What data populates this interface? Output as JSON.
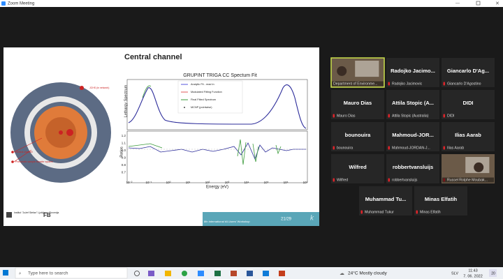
{
  "window": {
    "title": "Zoom Meeting"
  },
  "slide": {
    "title": "Central channel",
    "diagram_labels": [
      "JCHS (in network)",
      "Central channel",
      "Pneumatic sample transfer system"
    ],
    "chart": {
      "title": "GRUPINT TRIGA CC Spectum Fit",
      "legend": [
        "Analytic Fit - read in",
        "Modulated Fitting Function",
        "Final Fitted Spectrum",
        "MCNP (pointwise)"
      ],
      "y_label": "Lethargy Spectrum",
      "ratio_label": "Ratios",
      "x_label": "Energy (eV)",
      "ratio_ticks": [
        "1.2",
        "1.1",
        "1.0",
        "0.9",
        "0.8",
        "0.7"
      ],
      "x_ticks": [
        "10⁻²",
        "10⁻¹",
        "10⁰",
        "10¹",
        "10²",
        "10³",
        "10⁴",
        "10⁵",
        "10⁶",
        "10⁷"
      ]
    },
    "footer": {
      "workshop": "8th International k0-Users' Workshop",
      "page": "21/29",
      "institute": "Institut \"Jožef Stefan\" Ljubljana, Slovenija"
    }
  },
  "participants": [
    {
      "label": "Department of Environme...",
      "video": true,
      "active": true
    },
    {
      "name": "Radojko Jacimo...",
      "label": "Radojko Jacimovic"
    },
    {
      "name": "Giancarlo D'Ag...",
      "label": "Giancarlo D'Agostino"
    },
    {
      "name": "Mauro Dias",
      "label": "Mauro Dias"
    },
    {
      "name": "Attila Stopic (A...",
      "label": "Attila Stopic (Australia)"
    },
    {
      "name": "DIDI",
      "label": "DIDI"
    },
    {
      "name": "bounouira",
      "label": "bounouira"
    },
    {
      "name": "Mahmoud-JOR...",
      "label": "Mahmoud-JORDAN-J..."
    },
    {
      "name": "Ilias Aarab",
      "label": "Ilias Aarab"
    },
    {
      "name": "Wilfred",
      "label": "Wilfred"
    },
    {
      "name": "robbertvansluijs",
      "label": "robbertvansluijs"
    },
    {
      "label": "Russel Rolphe Moubak...",
      "video": true
    },
    {
      "name": "Muhammad Tu...",
      "label": "Muhammad Tukur"
    },
    {
      "name": "Minas Elfatih",
      "label": "Minas Elfatih"
    }
  ],
  "taskbar": {
    "search": "Type here to search",
    "weather": "24°C  Mostly cloudy",
    "language": "SLV",
    "time": "11:43",
    "date": "7. 06. 2022",
    "notifications": "20"
  }
}
